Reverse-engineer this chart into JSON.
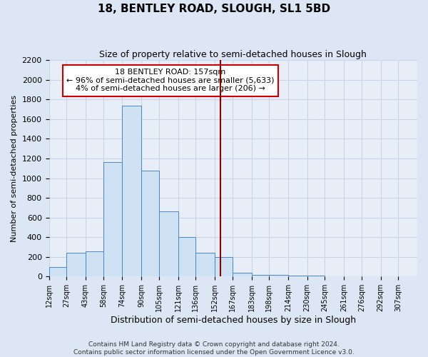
{
  "title": "18, BENTLEY ROAD, SLOUGH, SL1 5BD",
  "subtitle": "Size of property relative to semi-detached houses in Slough",
  "xlabel": "Distribution of semi-detached houses by size in Slough",
  "ylabel": "Number of semi-detached properties",
  "footer1": "Contains HM Land Registry data © Crown copyright and database right 2024.",
  "footer2": "Contains public sector information licensed under the Open Government Licence v3.0.",
  "bar_color": "#cfe2f3",
  "bar_edge_color": "#4a86c8",
  "bins": [
    12,
    27,
    43,
    58,
    74,
    90,
    105,
    121,
    136,
    152,
    167,
    183,
    198,
    214,
    230,
    245,
    261,
    276,
    292,
    307,
    323
  ],
  "counts": [
    100,
    240,
    260,
    1160,
    1740,
    1080,
    660,
    400,
    240,
    200,
    40,
    20,
    15,
    10,
    8,
    5,
    4,
    3,
    3,
    3
  ],
  "property_line_x": 157,
  "property_line_color": "#8b0000",
  "annotation_title": "18 BENTLEY ROAD: 157sqm",
  "annotation_line1": "← 96% of semi-detached houses are smaller (5,633)",
  "annotation_line2": "4% of semi-detached houses are larger (206) →",
  "annotation_box_color": "#ffffff",
  "annotation_box_edge": "#cc0000",
  "ylim": [
    0,
    2200
  ],
  "xlim_left": 12,
  "xlim_right": 323,
  "background_color": "#e8eef8",
  "fig_background_color": "#dde6f4",
  "grid_color": "#c8d4e8",
  "title_fontsize": 11,
  "subtitle_fontsize": 9,
  "tick_label_fontsize": 7,
  "ylabel_fontsize": 8,
  "xlabel_fontsize": 9,
  "footer_fontsize": 6.5
}
